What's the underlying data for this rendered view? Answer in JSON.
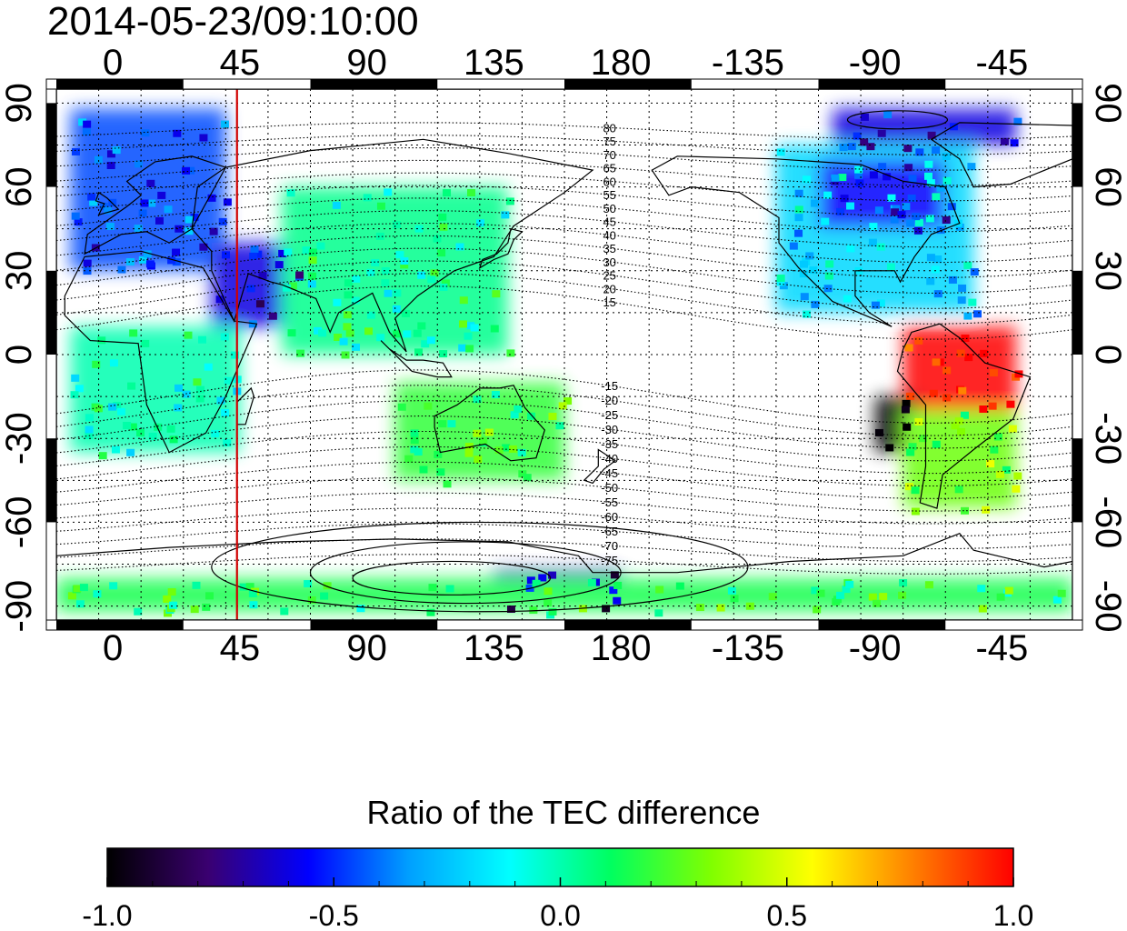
{
  "title": "2014-05-23/09:10:00",
  "map": {
    "x_ticks_bottom": [
      "0",
      "45",
      "90",
      "135",
      "180",
      "-135",
      "-90",
      "-45"
    ],
    "x_ticks_top": [
      "0",
      "45",
      "90",
      "135",
      "180",
      "-135",
      "-90",
      "-45"
    ],
    "y_ticks_left": [
      "90",
      "60",
      "30",
      "0",
      "-30",
      "-60",
      "-90"
    ],
    "y_ticks_right": [
      "90",
      "60",
      "30",
      "0",
      "-30",
      "-60",
      "-90"
    ],
    "x_tick_values": [
      0,
      45,
      90,
      135,
      180,
      225,
      270,
      315
    ],
    "y_tick_values": [
      90,
      60,
      30,
      0,
      -30,
      -60,
      -90
    ],
    "lon_range": [
      -20,
      340
    ],
    "lat_range": [
      -95,
      95
    ],
    "marker_longitude": 44,
    "marker_color": "#d00000",
    "contour_labels_north": [
      "80",
      "75",
      "70",
      "65",
      "60",
      "55",
      "50",
      "45",
      "40",
      "35",
      "30",
      "25",
      "20",
      "15"
    ],
    "contour_labels_south": [
      "-15",
      "-20",
      "-25",
      "-30",
      "-35",
      "-40",
      "-45",
      "-50",
      "-55",
      "-60",
      "-65",
      "-70",
      "-75"
    ],
    "label_longitude": 176
  },
  "colorbar": {
    "title": "Ratio of the TEC difference",
    "ticks": [
      "-1.0",
      "-0.5",
      "0.0",
      "0.5",
      "1.0"
    ],
    "tick_values": [
      -1.0,
      -0.5,
      0.0,
      0.5,
      1.0
    ],
    "range": [
      -1.0,
      1.0
    ],
    "colors": [
      "#000000",
      "#3a0070",
      "#0000ff",
      "#00a0ff",
      "#00ffff",
      "#00ff60",
      "#80ff00",
      "#ffff00",
      "#ff8000",
      "#ff0000"
    ]
  },
  "chart_data": {
    "type": "heatmap",
    "title": "2014-05-23/09:10:00",
    "xlabel": "",
    "ylabel": "",
    "x_range": [
      -20,
      340
    ],
    "y_range": [
      -95,
      95
    ],
    "colorbar_label": "Ratio of the TEC difference",
    "value_range": [
      -1.0,
      1.0
    ],
    "regions": [
      {
        "lon": [
          -15,
          40
        ],
        "lat": [
          30,
          88
        ],
        "value": -0.45
      },
      {
        "lon": [
          35,
          65
        ],
        "lat": [
          10,
          40
        ],
        "value": -0.6
      },
      {
        "lon": [
          -15,
          45
        ],
        "lat": [
          -35,
          10
        ],
        "value": 0.0
      },
      {
        "lon": [
          100,
          160
        ],
        "lat": [
          -45,
          -10
        ],
        "value": 0.2
      },
      {
        "lon": [
          235,
          305
        ],
        "lat": [
          15,
          75
        ],
        "value": -0.2
      },
      {
        "lon": [
          250,
          295
        ],
        "lat": [
          45,
          70
        ],
        "value": -0.55
      },
      {
        "lon": [
          280,
          320
        ],
        "lat": [
          -20,
          10
        ],
        "value": 1.0
      },
      {
        "lon": [
          270,
          285
        ],
        "lat": [
          -35,
          -15
        ],
        "value": -1.0
      },
      {
        "lon": [
          280,
          320
        ],
        "lat": [
          -55,
          -20
        ],
        "value": 0.3
      },
      {
        "lon": [
          135,
          180
        ],
        "lat": [
          -90,
          -77
        ],
        "value": -0.7
      },
      {
        "lon": [
          -20,
          340
        ],
        "lat": [
          -92,
          -80
        ],
        "value": 0.15
      },
      {
        "lon": [
          255,
          320
        ],
        "lat": [
          75,
          88
        ],
        "value": -0.6
      },
      {
        "lon": [
          60,
          140
        ],
        "lat": [
          0,
          60
        ],
        "value": 0.05
      }
    ]
  }
}
